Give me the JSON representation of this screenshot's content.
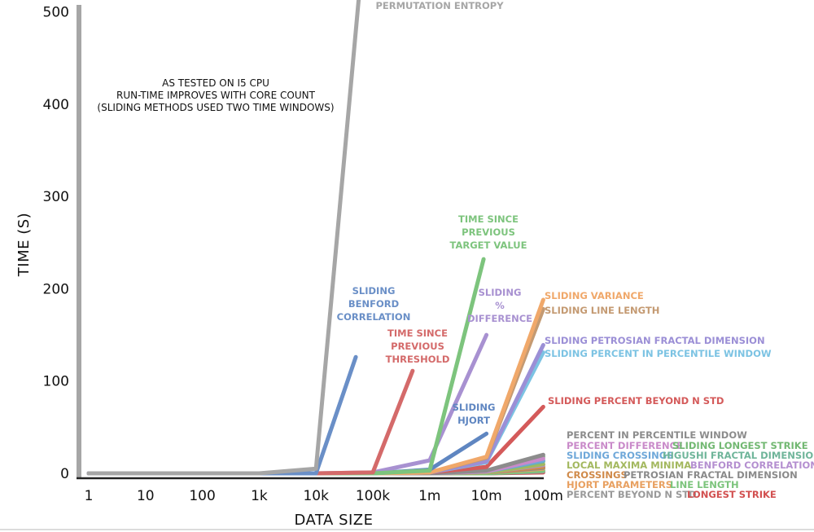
{
  "chart_data": {
    "type": "line",
    "title": "",
    "xlabel": "DATA SIZE",
    "ylabel": "TIME (S)",
    "x_categories": [
      "1",
      "10",
      "100",
      "1k",
      "10k",
      "100k",
      "1m",
      "10m",
      "100m"
    ],
    "yticks": [
      0,
      100,
      200,
      300,
      400,
      500
    ],
    "ylim": [
      0,
      510
    ],
    "grid": false,
    "annotation": [
      "AS TESTED ON I5 CPU",
      "RUN-TIME IMPROVES WITH CORE COUNT",
      "(SLIDING METHODS USED TWO TIME WINDOWS)"
    ],
    "series": [
      {
        "name": "PERMUTATION ENTROPY",
        "label_lines": [
          "PERMUTATION ENTROPY"
        ],
        "color": "#a6a6a6",
        "x": [
          0,
          1,
          2,
          3,
          4,
          4.85
        ],
        "y": [
          0,
          0,
          0,
          0,
          5,
          580
        ]
      },
      {
        "name": "SLIDING BENFORD CORRELATION",
        "label_lines": [
          "SLIDING",
          "BENFORD",
          "CORRELATION"
        ],
        "color": "#6a8fc7",
        "x": [
          0,
          1,
          2,
          3,
          4,
          4.7
        ],
        "y": [
          0,
          0,
          0,
          0,
          0,
          126
        ]
      },
      {
        "name": "TIME SINCE PREVIOUS THRESHOLD",
        "label_lines": [
          "TIME SINCE",
          "PREVIOUS",
          "THRESHOLD"
        ],
        "color": "#d46a6a",
        "x": [
          0,
          1,
          2,
          3,
          4,
          5,
          5.7
        ],
        "y": [
          0,
          0,
          0,
          0,
          0,
          1,
          111
        ]
      },
      {
        "name": "TIME SINCE PREVIOUS TARGET VALUE",
        "label_lines": [
          "TIME SINCE",
          "PREVIOUS",
          "TARGET VALUE"
        ],
        "color": "#7dc47d",
        "x": [
          0,
          1,
          2,
          3,
          4,
          5,
          6,
          6.95
        ],
        "y": [
          0,
          0,
          0,
          0,
          0,
          0,
          3,
          232
        ]
      },
      {
        "name": "SLIDING % DIFFERENCE",
        "label_lines": [
          "SLIDING",
          "%",
          "DIFFERENCE"
        ],
        "color": "#a891d1",
        "x": [
          0,
          1,
          2,
          3,
          4,
          5,
          6,
          7
        ],
        "y": [
          0,
          0,
          0,
          0,
          0,
          1,
          14,
          150
        ]
      },
      {
        "name": "SLIDING HJORT",
        "label_lines": [
          "SLIDING",
          "HJORT"
        ],
        "color": "#5f86c1",
        "x": [
          0,
          1,
          2,
          3,
          4,
          5,
          6,
          7
        ],
        "y": [
          0,
          0,
          0,
          0,
          0,
          0,
          4,
          43
        ]
      },
      {
        "name": "SLIDING VARIANCE",
        "label_lines": [
          "SLIDING VARIANCE"
        ],
        "color": "#f0a86a",
        "x": [
          0,
          1,
          2,
          3,
          4,
          5,
          6,
          7,
          8
        ],
        "y": [
          0,
          0,
          0,
          0,
          0,
          0,
          1,
          18,
          188
        ]
      },
      {
        "name": "SLIDING LINE LENGTH",
        "label_lines": [
          "SLIDING LINE LENGTH"
        ],
        "color": "#c49a72",
        "x": [
          0,
          1,
          2,
          3,
          4,
          5,
          6,
          7,
          8
        ],
        "y": [
          0,
          0,
          0,
          0,
          0,
          0,
          1,
          17,
          178
        ]
      },
      {
        "name": "SLIDING PETROSIAN FRACTAL DIMENSION",
        "label_lines": [
          "SLIDING PETROSIAN FRACTAL DIMENSION"
        ],
        "color": "#9b8fd6",
        "x": [
          0,
          1,
          2,
          3,
          4,
          5,
          6,
          7,
          8
        ],
        "y": [
          0,
          0,
          0,
          0,
          0,
          0,
          1,
          13,
          139
        ]
      },
      {
        "name": "SLIDING PERCENT IN PERCENTILE WINDOW",
        "label_lines": [
          "SLIDING PERCENT IN PERCENTILE WINDOW"
        ],
        "color": "#7cc3e3",
        "x": [
          0,
          1,
          2,
          3,
          4,
          5,
          6,
          7,
          8
        ],
        "y": [
          0,
          0,
          0,
          0,
          0,
          0,
          1,
          12,
          131
        ]
      },
      {
        "name": "SLIDING PERCENT BEYOND N STD",
        "label_lines": [
          "SLIDING PERCENT BEYOND N STD"
        ],
        "color": "#d45a5a",
        "x": [
          0,
          1,
          2,
          3,
          4,
          5,
          6,
          7,
          8
        ],
        "y": [
          0,
          0,
          0,
          0,
          0,
          0,
          1,
          7,
          72
        ]
      },
      {
        "name": "PERCENT IN PERCENTILE WINDOW",
        "label_lines": [
          "PERCENT IN PERCENTILE WINDOW"
        ],
        "color": "#8c8c8c",
        "x": [
          0,
          1,
          2,
          3,
          4,
          5,
          6,
          7,
          8
        ],
        "y": [
          0,
          0,
          0,
          0,
          0,
          0,
          0,
          3,
          20
        ]
      },
      {
        "name": "PERCENT DIFFERENCE",
        "label_lines": [
          "PERCENT DIFFERENCE"
        ],
        "color": "#c98ac9",
        "x": [
          0,
          1,
          2,
          3,
          4,
          5,
          6,
          7,
          8
        ],
        "y": [
          0,
          0,
          0,
          0,
          0,
          0,
          0,
          2,
          16
        ]
      },
      {
        "name": "SLIDING LONGEST STRIKE",
        "label_lines": [
          "SLIDING LONGEST STRIKE"
        ],
        "color": "#72b872",
        "x": [
          0,
          1,
          2,
          3,
          4,
          5,
          6,
          7,
          8
        ],
        "y": [
          0,
          0,
          0,
          0,
          0,
          0,
          0,
          2,
          18
        ]
      },
      {
        "name": "SLIDING CROSSINGS",
        "label_lines": [
          "SLIDING CROSSINGS"
        ],
        "color": "#6fa8d9",
        "x": [
          0,
          1,
          2,
          3,
          4,
          5,
          6,
          7,
          8
        ],
        "y": [
          0,
          0,
          0,
          0,
          0,
          0,
          0,
          2,
          14
        ]
      },
      {
        "name": "HIGUSHI FRACTAL DIMENSION",
        "label_lines": [
          "HIGUSHI FRACTAL DIMENSION"
        ],
        "color": "#6fb59a",
        "x": [
          0,
          1,
          2,
          3,
          4,
          5,
          6,
          7,
          8
        ],
        "y": [
          0,
          0,
          0,
          0,
          0,
          0,
          0,
          2,
          13
        ]
      },
      {
        "name": "LOCAL MAXIMA MINIMA",
        "label_lines": [
          "LOCAL MAXIMA MINIMA"
        ],
        "color": "#a3b85e",
        "x": [
          0,
          1,
          2,
          3,
          4,
          5,
          6,
          7,
          8
        ],
        "y": [
          0,
          0,
          0,
          0,
          0,
          0,
          0,
          1,
          10
        ]
      },
      {
        "name": "BENFORD CORRELATION",
        "label_lines": [
          "BENFORD CORRELATION"
        ],
        "color": "#b48fd0",
        "x": [
          0,
          1,
          2,
          3,
          4,
          5,
          6,
          7,
          8
        ],
        "y": [
          0,
          0,
          0,
          0,
          0,
          0,
          0,
          1,
          9
        ]
      },
      {
        "name": "CROSSINGS",
        "label_lines": [
          "CROSSINGS"
        ],
        "color": "#d08a4a",
        "x": [
          0,
          1,
          2,
          3,
          4,
          5,
          6,
          7,
          8
        ],
        "y": [
          0,
          0,
          0,
          0,
          0,
          0,
          0,
          1,
          7
        ]
      },
      {
        "name": "PETROSIAN FRACTAL DIMENSION",
        "label_lines": [
          "PETROSIAN FRACTAL DIMENSION"
        ],
        "color": "#8a8a8a",
        "x": [
          0,
          1,
          2,
          3,
          4,
          5,
          6,
          7,
          8
        ],
        "y": [
          0,
          0,
          0,
          0,
          0,
          0,
          0,
          1,
          6
        ]
      },
      {
        "name": "HJORT PARAMETERS",
        "label_lines": [
          "HJORT PARAMETERS"
        ],
        "color": "#e8a060",
        "x": [
          0,
          1,
          2,
          3,
          4,
          5,
          6,
          7,
          8
        ],
        "y": [
          0,
          0,
          0,
          0,
          0,
          0,
          0,
          1,
          5
        ]
      },
      {
        "name": "LINE LENGTH",
        "label_lines": [
          "LINE LENGTH"
        ],
        "color": "#7cc47c",
        "x": [
          0,
          1,
          2,
          3,
          4,
          5,
          6,
          7,
          8
        ],
        "y": [
          0,
          0,
          0,
          0,
          0,
          0,
          0,
          0,
          3
        ]
      },
      {
        "name": "PERCENT BEYOND N STD",
        "label_lines": [
          "PERCENT BEYOND N STD"
        ],
        "color": "#9a9a9a",
        "x": [
          0,
          1,
          2,
          3,
          4,
          5,
          6,
          7,
          8
        ],
        "y": [
          0,
          0,
          0,
          0,
          0,
          0,
          0,
          0,
          2
        ]
      },
      {
        "name": "LONGEST STRIKE",
        "label_lines": [
          "LONGEST STRIKE"
        ],
        "color": "#d25050",
        "x": [
          0,
          1,
          2,
          3,
          4,
          5,
          6,
          7,
          8
        ],
        "y": [
          0,
          0,
          0,
          0,
          0,
          0,
          0,
          0,
          1
        ]
      }
    ]
  }
}
